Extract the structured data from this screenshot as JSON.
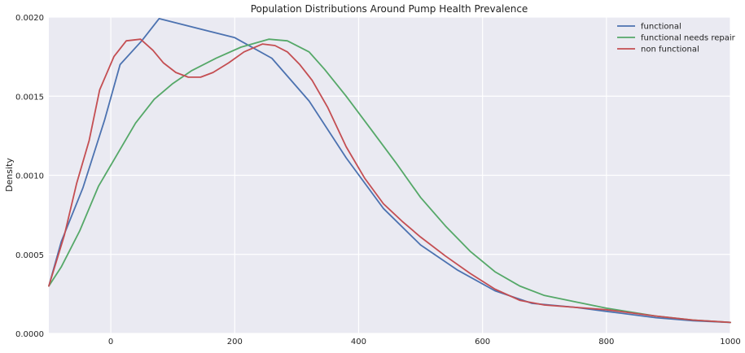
{
  "chart_data": {
    "type": "line",
    "title": "Population Distributions Around Pump Health Prevalence",
    "xlabel": "",
    "ylabel": "Density",
    "xlim": [
      -100,
      1000
    ],
    "ylim": [
      0,
      0.002
    ],
    "x_ticks": [
      0,
      200,
      400,
      600,
      800,
      1000
    ],
    "x_tick_labels": [
      "0",
      "200",
      "400",
      "600",
      "800",
      "1000"
    ],
    "y_ticks": [
      0,
      0.0005,
      0.001,
      0.0015,
      0.002
    ],
    "y_tick_labels": [
      "0.0000",
      "0.0005",
      "0.0010",
      "0.0015",
      "0.0020"
    ],
    "grid": true,
    "legend_position": "top-right",
    "series": [
      {
        "name": "functional",
        "color": "#4c72b0",
        "points": [
          [
            -100,
            0.0003
          ],
          [
            -80,
            0.00058
          ],
          [
            -45,
            0.00092
          ],
          [
            -10,
            0.00135
          ],
          [
            15,
            0.0017
          ],
          [
            50,
            0.00185
          ],
          [
            78,
            0.00199
          ],
          [
            200,
            0.00187
          ],
          [
            260,
            0.00174
          ],
          [
            320,
            0.00147
          ],
          [
            380,
            0.00111
          ],
          [
            440,
            0.00079
          ],
          [
            500,
            0.00056
          ],
          [
            560,
            0.0004
          ],
          [
            620,
            0.00027
          ],
          [
            680,
            0.00019
          ],
          [
            750,
            0.000165
          ],
          [
            800,
            0.00014
          ],
          [
            880,
            0.0001
          ],
          [
            940,
            8e-05
          ],
          [
            1000,
            7e-05
          ]
        ]
      },
      {
        "name": "functional needs repair",
        "color": "#55a868",
        "points": [
          [
            -100,
            0.0003
          ],
          [
            -80,
            0.00042
          ],
          [
            -50,
            0.00065
          ],
          [
            -20,
            0.00093
          ],
          [
            10,
            0.00113
          ],
          [
            40,
            0.00133
          ],
          [
            70,
            0.00148
          ],
          [
            100,
            0.00158
          ],
          [
            130,
            0.00166
          ],
          [
            170,
            0.00174
          ],
          [
            210,
            0.00181
          ],
          [
            255,
            0.00186
          ],
          [
            285,
            0.00185
          ],
          [
            320,
            0.00178
          ],
          [
            345,
            0.00167
          ],
          [
            380,
            0.0015
          ],
          [
            420,
            0.00129
          ],
          [
            460,
            0.00108
          ],
          [
            500,
            0.00086
          ],
          [
            540,
            0.00068
          ],
          [
            580,
            0.00052
          ],
          [
            620,
            0.00039
          ],
          [
            660,
            0.0003
          ],
          [
            700,
            0.00024
          ],
          [
            750,
            0.0002
          ],
          [
            800,
            0.00016
          ],
          [
            880,
            0.00011
          ],
          [
            940,
            8.5e-05
          ],
          [
            1000,
            7e-05
          ]
        ]
      },
      {
        "name": "non functional",
        "color": "#c44e52",
        "points": [
          [
            -100,
            0.0003
          ],
          [
            -75,
            0.00062
          ],
          [
            -55,
            0.00095
          ],
          [
            -35,
            0.00122
          ],
          [
            -18,
            0.00154
          ],
          [
            5,
            0.00175
          ],
          [
            25,
            0.00185
          ],
          [
            48,
            0.00186
          ],
          [
            68,
            0.00179
          ],
          [
            85,
            0.00171
          ],
          [
            105,
            0.00165
          ],
          [
            125,
            0.00162
          ],
          [
            145,
            0.00162
          ],
          [
            165,
            0.00165
          ],
          [
            190,
            0.00171
          ],
          [
            215,
            0.00178
          ],
          [
            245,
            0.00183
          ],
          [
            265,
            0.00182
          ],
          [
            285,
            0.00178
          ],
          [
            305,
            0.0017
          ],
          [
            325,
            0.0016
          ],
          [
            350,
            0.00143
          ],
          [
            380,
            0.00118
          ],
          [
            410,
            0.00098
          ],
          [
            440,
            0.00082
          ],
          [
            470,
            0.00071
          ],
          [
            500,
            0.00061
          ],
          [
            540,
            0.00049
          ],
          [
            580,
            0.00038
          ],
          [
            620,
            0.00028
          ],
          [
            660,
            0.00021
          ],
          [
            700,
            0.00018
          ],
          [
            750,
            0.000165
          ],
          [
            800,
            0.00015
          ],
          [
            880,
            0.00011
          ],
          [
            940,
            8.5e-05
          ],
          [
            1000,
            7e-05
          ]
        ]
      }
    ]
  }
}
